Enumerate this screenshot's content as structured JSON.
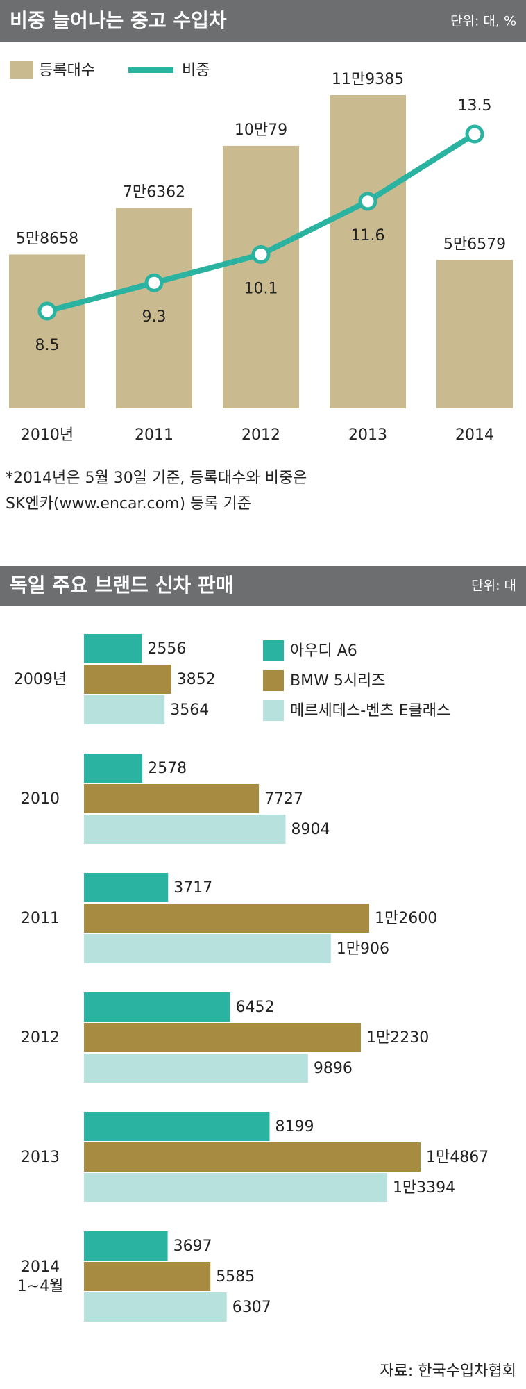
{
  "chart_data": [
    {
      "type": "bar_line",
      "title": "비중 늘어나는 중고 수입차",
      "unit": "단위: 대, %",
      "categories": [
        "2010년",
        "2011",
        "2012",
        "2013",
        "2014"
      ],
      "series": [
        {
          "name": "등록대수",
          "type": "bar",
          "color": "#c9ba90",
          "values": [
            58658,
            76362,
            100079,
            119385,
            56579
          ],
          "value_labels": [
            "5만8658",
            "7만6362",
            "10만79",
            "11만9385",
            "5만6579"
          ]
        },
        {
          "name": "비중",
          "type": "line",
          "color": "#2ab3a0",
          "values": [
            8.5,
            9.3,
            10.1,
            11.6,
            13.5
          ]
        }
      ],
      "footnote": [
        "*2014년은 5월 30일 기준, 등록대수와 비중은",
        "SK엔카(www.encar.com) 등록 기준"
      ]
    },
    {
      "type": "horizontal_bar",
      "title": "독일 주요 브랜드 신차 판매",
      "unit": "단위: 대",
      "categories": [
        "2009년",
        "2010",
        "2011",
        "2012",
        "2013",
        "2014\n1~4월"
      ],
      "series": [
        {
          "name": "아우디 A6",
          "color": "#2ab3a0",
          "values": [
            2556,
            2578,
            3717,
            6452,
            8199,
            3697
          ],
          "value_labels": [
            "2556",
            "2578",
            "3717",
            "6452",
            "8199",
            "3697"
          ]
        },
        {
          "name": "BMW 5시리즈",
          "color": "#a68b40",
          "values": [
            3852,
            7727,
            12600,
            12230,
            14867,
            5585
          ],
          "value_labels": [
            "3852",
            "7727",
            "1만2600",
            "1만2230",
            "1만4867",
            "5585"
          ]
        },
        {
          "name": "메르세데스-벤츠 E클래스",
          "color": "#b6e1dc",
          "values": [
            3564,
            8904,
            10906,
            9896,
            13394,
            6307
          ],
          "value_labels": [
            "3564",
            "8904",
            "1만906",
            "9896",
            "1만3394",
            "6307"
          ]
        }
      ],
      "source": "자료: 한국수입차협회"
    }
  ]
}
